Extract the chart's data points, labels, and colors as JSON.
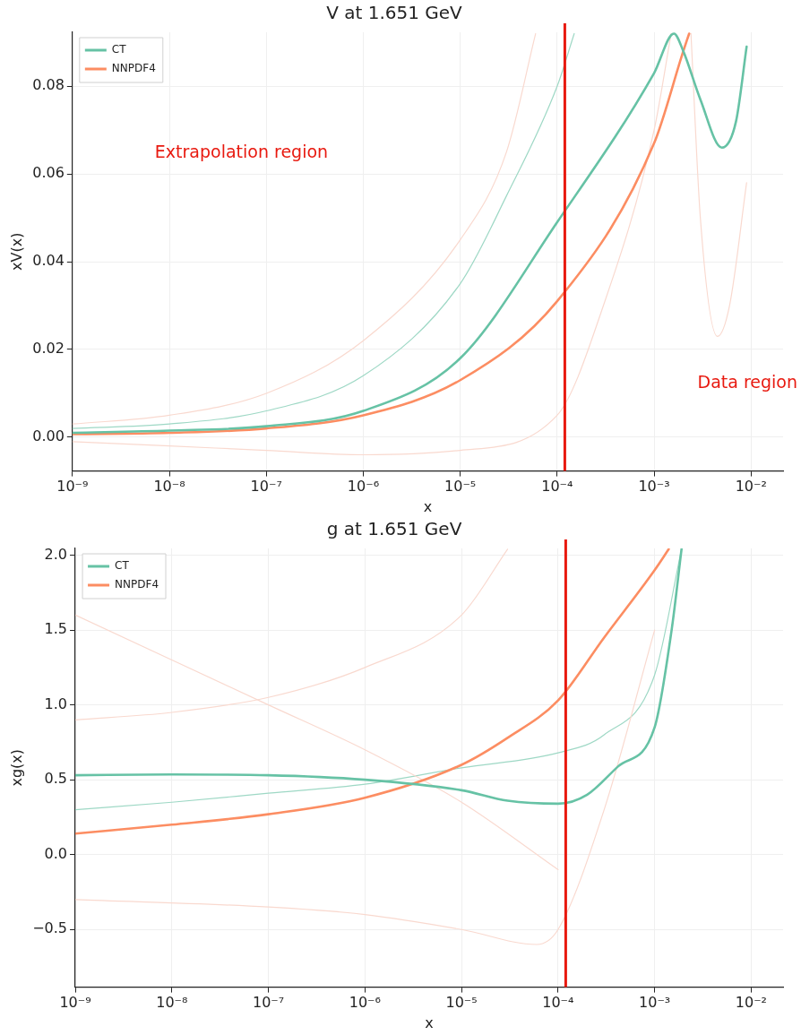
{
  "chart_data": [
    {
      "type": "line",
      "title": "V at 1.651 GeV",
      "xlabel": "x",
      "ylabel": "xV(x)",
      "log": "x",
      "grid": true,
      "legend": "top left",
      "marker": "none",
      "line_style": "solid",
      "xlim": [
        1e-09,
        0.0214
      ],
      "ylim": [
        -0.0077,
        0.0923
      ],
      "xticks": [
        {
          "value": 1e-09,
          "label": "10⁻⁹"
        },
        {
          "value": 1e-08,
          "label": "10⁻⁸"
        },
        {
          "value": 1e-07,
          "label": "10⁻⁷"
        },
        {
          "value": 1e-06,
          "label": "10⁻⁶"
        },
        {
          "value": 1e-05,
          "label": "10⁻⁵"
        },
        {
          "value": 0.0001,
          "label": "10⁻⁴"
        },
        {
          "value": 0.001,
          "label": "10⁻³"
        },
        {
          "value": 0.01,
          "label": "10⁻²"
        }
      ],
      "yticks": [
        {
          "value": 0,
          "label": "0.00"
        },
        {
          "value": 0.02,
          "label": "0.02"
        },
        {
          "value": 0.04,
          "label": "0.04"
        },
        {
          "value": 0.06,
          "label": "0.06"
        },
        {
          "value": 0.08,
          "label": "0.08"
        }
      ],
      "ref_lines": [
        {
          "axis": "x",
          "value": 0.00012,
          "color": "#e8190f"
        }
      ],
      "annotations": [
        "Extrapolation region",
        "Data region"
      ],
      "series": [
        {
          "color": "#f9d9cf",
          "x": [
            1e-09,
            1e-08,
            1e-07,
            1e-06,
            1e-05,
            3e-05,
            6e-05
          ],
          "values": [
            0.003,
            0.005,
            0.01,
            0.022,
            0.045,
            0.065,
            0.092
          ]
        },
        {
          "color": "#f9d9cf",
          "x": [
            1e-09,
            1e-08,
            1e-07,
            1e-06,
            1e-05,
            0.0001,
            0.0003,
            0.001,
            0.0015
          ],
          "values": [
            -0.001,
            -0.002,
            -0.003,
            -0.004,
            -0.003,
            0.005,
            0.03,
            0.07,
            0.092
          ]
        },
        {
          "color": "#f9d9cf",
          "x": [
            0.0024,
            0.003,
            0.0045,
            0.006,
            0.009
          ],
          "values": [
            0.092,
            0.05,
            0.023,
            0.03,
            0.058
          ]
        },
        {
          "color": "#9ed8c5",
          "x": [
            1e-09,
            1e-08,
            1e-07,
            1e-06,
            1e-05,
            3e-05,
            0.0001,
            0.00015
          ],
          "values": [
            0.002,
            0.003,
            0.006,
            0.014,
            0.035,
            0.055,
            0.08,
            0.092
          ]
        },
        {
          "name": "CT",
          "color": "#66c2a5",
          "x": [
            1e-09,
            1e-08,
            1e-07,
            1e-06,
            1e-05,
            0.0001,
            0.001,
            0.0016,
            0.002,
            0.003,
            0.005,
            0.007,
            0.009
          ],
          "values": [
            0.001,
            0.0015,
            0.0025,
            0.006,
            0.018,
            0.049,
            0.083,
            0.092,
            0.088,
            0.077,
            0.066,
            0.072,
            0.089
          ]
        },
        {
          "name": "NNPDF4",
          "color": "#fc8d62",
          "x": [
            1e-09,
            1e-08,
            1e-07,
            1e-06,
            1e-05,
            0.0001,
            0.001,
            0.002,
            0.0023
          ],
          "values": [
            0.0007,
            0.001,
            0.002,
            0.005,
            0.013,
            0.031,
            0.067,
            0.088,
            0.092
          ]
        }
      ]
    },
    {
      "type": "line",
      "title": "g at 1.651 GeV",
      "xlabel": "x",
      "ylabel": "xg(x)",
      "log": "x",
      "grid": true,
      "legend": "top left",
      "marker": "none",
      "line_style": "solid",
      "xlim": [
        1e-09,
        0.0214
      ],
      "ylim": [
        -0.885,
        2.045
      ],
      "xticks": [
        {
          "value": 1e-09,
          "label": "10⁻⁹"
        },
        {
          "value": 1e-08,
          "label": "10⁻⁸"
        },
        {
          "value": 1e-07,
          "label": "10⁻⁷"
        },
        {
          "value": 1e-06,
          "label": "10⁻⁶"
        },
        {
          "value": 1e-05,
          "label": "10⁻⁵"
        },
        {
          "value": 0.0001,
          "label": "10⁻⁴"
        },
        {
          "value": 0.001,
          "label": "10⁻³"
        },
        {
          "value": 0.01,
          "label": "10⁻²"
        }
      ],
      "yticks": [
        {
          "value": -0.5,
          "label": "−0.5"
        },
        {
          "value": 0,
          "label": "0.0"
        },
        {
          "value": 0.5,
          "label": "0.5"
        },
        {
          "value": 1,
          "label": "1.0"
        },
        {
          "value": 1.5,
          "label": "1.5"
        },
        {
          "value": 2,
          "label": "2.0"
        }
      ],
      "ref_lines": [
        {
          "axis": "x",
          "value": 0.00012,
          "color": "#e8190f"
        }
      ],
      "series": [
        {
          "color": "#f9d9cf",
          "x": [
            1e-09,
            1e-08,
            1e-07,
            1e-06,
            1e-05,
            0.0001
          ],
          "values": [
            1.6,
            1.3,
            1.0,
            0.7,
            0.35,
            -0.1
          ]
        },
        {
          "color": "#f9d9cf",
          "x": [
            1e-09,
            1e-07,
            1e-06,
            1e-05,
            6e-05,
            0.0001,
            0.0003,
            0.001
          ],
          "values": [
            -0.3,
            -0.35,
            -0.4,
            -0.5,
            -0.6,
            -0.5,
            0.3,
            1.5
          ]
        },
        {
          "color": "#f9d9cf",
          "x": [
            1e-09,
            1e-08,
            1e-07,
            1e-06,
            1e-05,
            3e-05
          ],
          "values": [
            0.9,
            0.95,
            1.05,
            1.25,
            1.6,
            2.04
          ]
        },
        {
          "color": "#9ed8c5",
          "x": [
            1e-09,
            1e-08,
            1e-07,
            1e-06,
            1e-05,
            0.0001,
            0.0003,
            0.001,
            0.0019
          ],
          "values": [
            0.3,
            0.35,
            0.41,
            0.47,
            0.58,
            0.68,
            0.8,
            1.2,
            2.04
          ]
        },
        {
          "name": "CT",
          "color": "#66c2a5",
          "x": [
            1e-09,
            1e-08,
            1e-07,
            1e-06,
            1e-05,
            3e-05,
            0.0001,
            0.0002,
            0.00042,
            0.001,
            0.0015,
            0.0019
          ],
          "values": [
            0.53,
            0.535,
            0.53,
            0.5,
            0.43,
            0.36,
            0.34,
            0.4,
            0.59,
            0.85,
            1.5,
            2.04
          ]
        },
        {
          "name": "NNPDF4",
          "color": "#fc8d62",
          "x": [
            1e-09,
            1e-08,
            1e-07,
            1e-06,
            1e-05,
            3e-05,
            0.0001,
            0.0003,
            0.001,
            0.0014
          ],
          "values": [
            0.14,
            0.2,
            0.27,
            0.38,
            0.6,
            0.78,
            1.03,
            1.45,
            1.9,
            2.04
          ]
        }
      ]
    }
  ]
}
